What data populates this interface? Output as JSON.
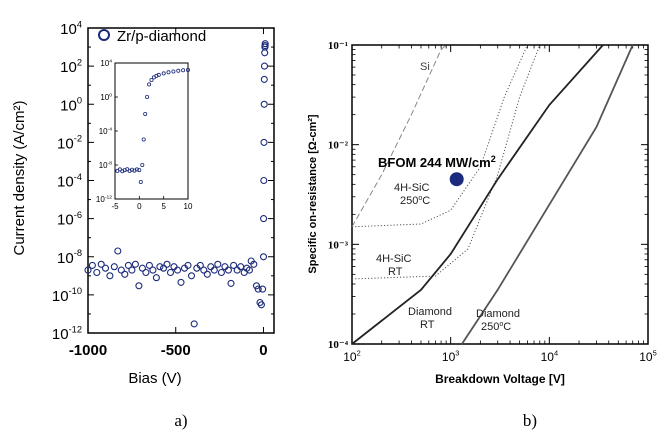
{
  "chart_data": [
    {
      "panel_label": "a)",
      "type": "scatter",
      "xlabel": "Bias (V)",
      "ylabel": "Current density (A/cm²)",
      "x_scale": "linear",
      "y_scale": "log",
      "xlim": [
        -1000,
        60
      ],
      "ylim": [
        1e-12,
        10000.0
      ],
      "x_ticks": [
        "-1000",
        "-500",
        "0"
      ],
      "y_tick_labels": [
        {
          "base": "10",
          "exp": "4"
        },
        {
          "base": "10",
          "exp": "2"
        },
        {
          "base": "10",
          "exp": "0"
        },
        {
          "base": "10",
          "exp": "-2"
        },
        {
          "base": "10",
          "exp": "-4"
        },
        {
          "base": "10",
          "exp": "-6"
        },
        {
          "base": "10",
          "exp": "-8"
        },
        {
          "base": "10",
          "exp": "-10"
        },
        {
          "base": "10",
          "exp": "-12"
        }
      ],
      "legend": "Zr/p-diamond",
      "legend_position": "top-right",
      "marker_color": "#1c2a7a",
      "series": [
        {
          "name": "Zr/p-diamond",
          "points": [
            [
              -1000,
              2e-09
            ],
            [
              -975,
              3.5e-09
            ],
            [
              -950,
              1.5e-09
            ],
            [
              -925,
              4e-09
            ],
            [
              -900,
              2.5e-09
            ],
            [
              -875,
              1e-09
            ],
            [
              -850,
              3e-09
            ],
            [
              -830,
              2e-08
            ],
            [
              -810,
              2e-09
            ],
            [
              -790,
              1.2e-09
            ],
            [
              -770,
              3.5e-09
            ],
            [
              -750,
              2e-09
            ],
            [
              -730,
              4e-09
            ],
            [
              -710,
              3e-10
            ],
            [
              -690,
              2.5e-09
            ],
            [
              -670,
              1.5e-09
            ],
            [
              -650,
              3.5e-09
            ],
            [
              -630,
              2e-09
            ],
            [
              -610,
              8e-10
            ],
            [
              -590,
              3e-09
            ],
            [
              -570,
              2.5e-09
            ],
            [
              -550,
              4e-09
            ],
            [
              -530,
              1.5e-09
            ],
            [
              -510,
              3e-09
            ],
            [
              -490,
              2e-09
            ],
            [
              -470,
              4.5e-10
            ],
            [
              -450,
              2.5e-09
            ],
            [
              -430,
              3.5e-09
            ],
            [
              -410,
              1e-09
            ],
            [
              -395,
              3e-12
            ],
            [
              -380,
              2.5e-09
            ],
            [
              -360,
              3.5e-09
            ],
            [
              -340,
              2e-09
            ],
            [
              -320,
              1.2e-09
            ],
            [
              -300,
              3e-09
            ],
            [
              -280,
              2e-09
            ],
            [
              -260,
              4e-09
            ],
            [
              -240,
              1.5e-09
            ],
            [
              -220,
              3e-09
            ],
            [
              -200,
              2e-09
            ],
            [
              -185,
              4e-10
            ],
            [
              -170,
              3.5e-09
            ],
            [
              -150,
              2e-09
            ],
            [
              -130,
              3e-09
            ],
            [
              -110,
              1.5e-09
            ],
            [
              -95,
              2.5e-09
            ],
            [
              -80,
              2e-09
            ],
            [
              -70,
              6e-09
            ],
            [
              -55,
              4e-09
            ],
            [
              -40,
              3e-10
            ],
            [
              -30,
              2e-10
            ],
            [
              -20,
              4e-11
            ],
            [
              -12,
              3e-11
            ],
            [
              -5,
              2e-10
            ],
            [
              0,
              1e-08
            ],
            [
              1,
              1e-06
            ],
            [
              2,
              0.0001
            ],
            [
              3,
              0.01
            ],
            [
              4,
              1.0
            ],
            [
              5,
              20.0
            ],
            [
              6,
              100.0
            ],
            [
              7,
              500.0
            ],
            [
              8,
              1000.0
            ],
            [
              9,
              1200.0
            ],
            [
              10,
              1500.0
            ]
          ]
        }
      ],
      "inset": {
        "type": "scatter",
        "xlim": [
          -5,
          10
        ],
        "ylim": [
          1e-12,
          10000.0
        ],
        "x_ticks": [
          "-5",
          "0",
          "5",
          "10"
        ],
        "y_tick_labels": [
          {
            "base": "10",
            "exp": "4"
          },
          {
            "base": "10",
            "exp": "0"
          },
          {
            "base": "10",
            "exp": "-4"
          },
          {
            "base": "10",
            "exp": "-8"
          },
          {
            "base": "10",
            "exp": "-12"
          }
        ],
        "points": [
          [
            -4.5,
            2e-09
          ],
          [
            -4.0,
            3e-09
          ],
          [
            -3.5,
            1.8e-09
          ],
          [
            -3.0,
            2.5e-09
          ],
          [
            -2.5,
            3.2e-09
          ],
          [
            -2.0,
            2e-09
          ],
          [
            -1.5,
            2.8e-09
          ],
          [
            -1.0,
            2.2e-09
          ],
          [
            -0.5,
            3e-09
          ],
          [
            0.0,
            2.5e-09
          ],
          [
            0.3,
            1e-10
          ],
          [
            0.6,
            1e-08
          ],
          [
            0.9,
            1e-05
          ],
          [
            1.2,
            0.01
          ],
          [
            1.6,
            1.0
          ],
          [
            2.0,
            30.0
          ],
          [
            2.5,
            100.0
          ],
          [
            3.0,
            200.0
          ],
          [
            3.5,
            300.0
          ],
          [
            4.0,
            400.0
          ],
          [
            5.0,
            600.0
          ],
          [
            6.0,
            800.0
          ],
          [
            7.0,
            1000.0
          ],
          [
            8.0,
            1200.0
          ],
          [
            9.0,
            1400.0
          ],
          [
            10.0,
            1500.0
          ]
        ]
      }
    },
    {
      "panel_label": "b)",
      "type": "line",
      "xlabel": "Breakdown Voltage [V]",
      "ylabel": "Specific on-resistance [Ω-cm²]",
      "x_scale": "log",
      "y_scale": "log",
      "xlim": [
        100,
        100000
      ],
      "ylim": [
        0.0001,
        0.1
      ],
      "x_tick_labels": [
        {
          "base": "10",
          "exp": "2"
        },
        {
          "base": "10",
          "exp": "3"
        },
        {
          "base": "10",
          "exp": "4"
        },
        {
          "base": "10",
          "exp": "5"
        }
      ],
      "y_tick_labels": [
        "10⁻⁴",
        "10⁻³",
        "10⁻²",
        "10⁻¹"
      ],
      "series": [
        {
          "name": "Si",
          "style": "dashed",
          "color": "#888888",
          "points": [
            [
              100,
              0.0015
            ],
            [
              200,
              0.005
            ],
            [
              400,
              0.02
            ],
            [
              800,
              0.09
            ],
            [
              900,
              0.1
            ]
          ]
        },
        {
          "name": "4H-SiC 250°C",
          "style": "dotted",
          "color": "#555555",
          "points": [
            [
              100,
              0.0015
            ],
            [
              500,
              0.0016
            ],
            [
              1000,
              0.0022
            ],
            [
              2000,
              0.006
            ],
            [
              3500,
              0.03
            ],
            [
              6000,
              0.1
            ]
          ]
        },
        {
          "name": "4H-SiC RT",
          "style": "dotted",
          "color": "#555555",
          "points": [
            [
              100,
              0.00045
            ],
            [
              700,
              0.00048
            ],
            [
              1500,
              0.0009
            ],
            [
              3000,
              0.005
            ],
            [
              5000,
              0.03
            ],
            [
              8000,
              0.1
            ]
          ]
        },
        {
          "name": "Diamond RT",
          "style": "solid",
          "color": "#222222",
          "points": [
            [
              100,
              0.0001
            ],
            [
              500,
              0.00035
            ],
            [
              1000,
              0.0008
            ],
            [
              3000,
              0.0045
            ],
            [
              10000,
              0.025
            ],
            [
              35000,
              0.1
            ]
          ]
        },
        {
          "name": "Diamond 250°C",
          "style": "solid",
          "color": "#555555",
          "points": [
            [
              1300,
              0.0001
            ],
            [
              3000,
              0.00035
            ],
            [
              10000,
              0.0025
            ],
            [
              30000,
              0.015
            ],
            [
              70000,
              0.1
            ]
          ]
        }
      ],
      "labels": [
        {
          "key": "si",
          "text": "Si"
        },
        {
          "key": "sic250",
          "line1": "4H-SiC",
          "line2": "250",
          "sup": "o",
          "line2_tail": "C"
        },
        {
          "key": "sicrt",
          "line1": "4H-SiC",
          "line2": "RT"
        },
        {
          "key": "diamrt",
          "line1": "Diamond",
          "line2": "RT"
        },
        {
          "key": "diam250",
          "line1": "Diamond",
          "line2": "250",
          "sup": "o",
          "line2_tail": "C"
        }
      ],
      "marker": {
        "x": 1150,
        "y": 0.0045,
        "color": "#1a2a7c"
      },
      "annotation": {
        "text": "BFOM 244 MW/cm",
        "sup": "2"
      }
    }
  ]
}
